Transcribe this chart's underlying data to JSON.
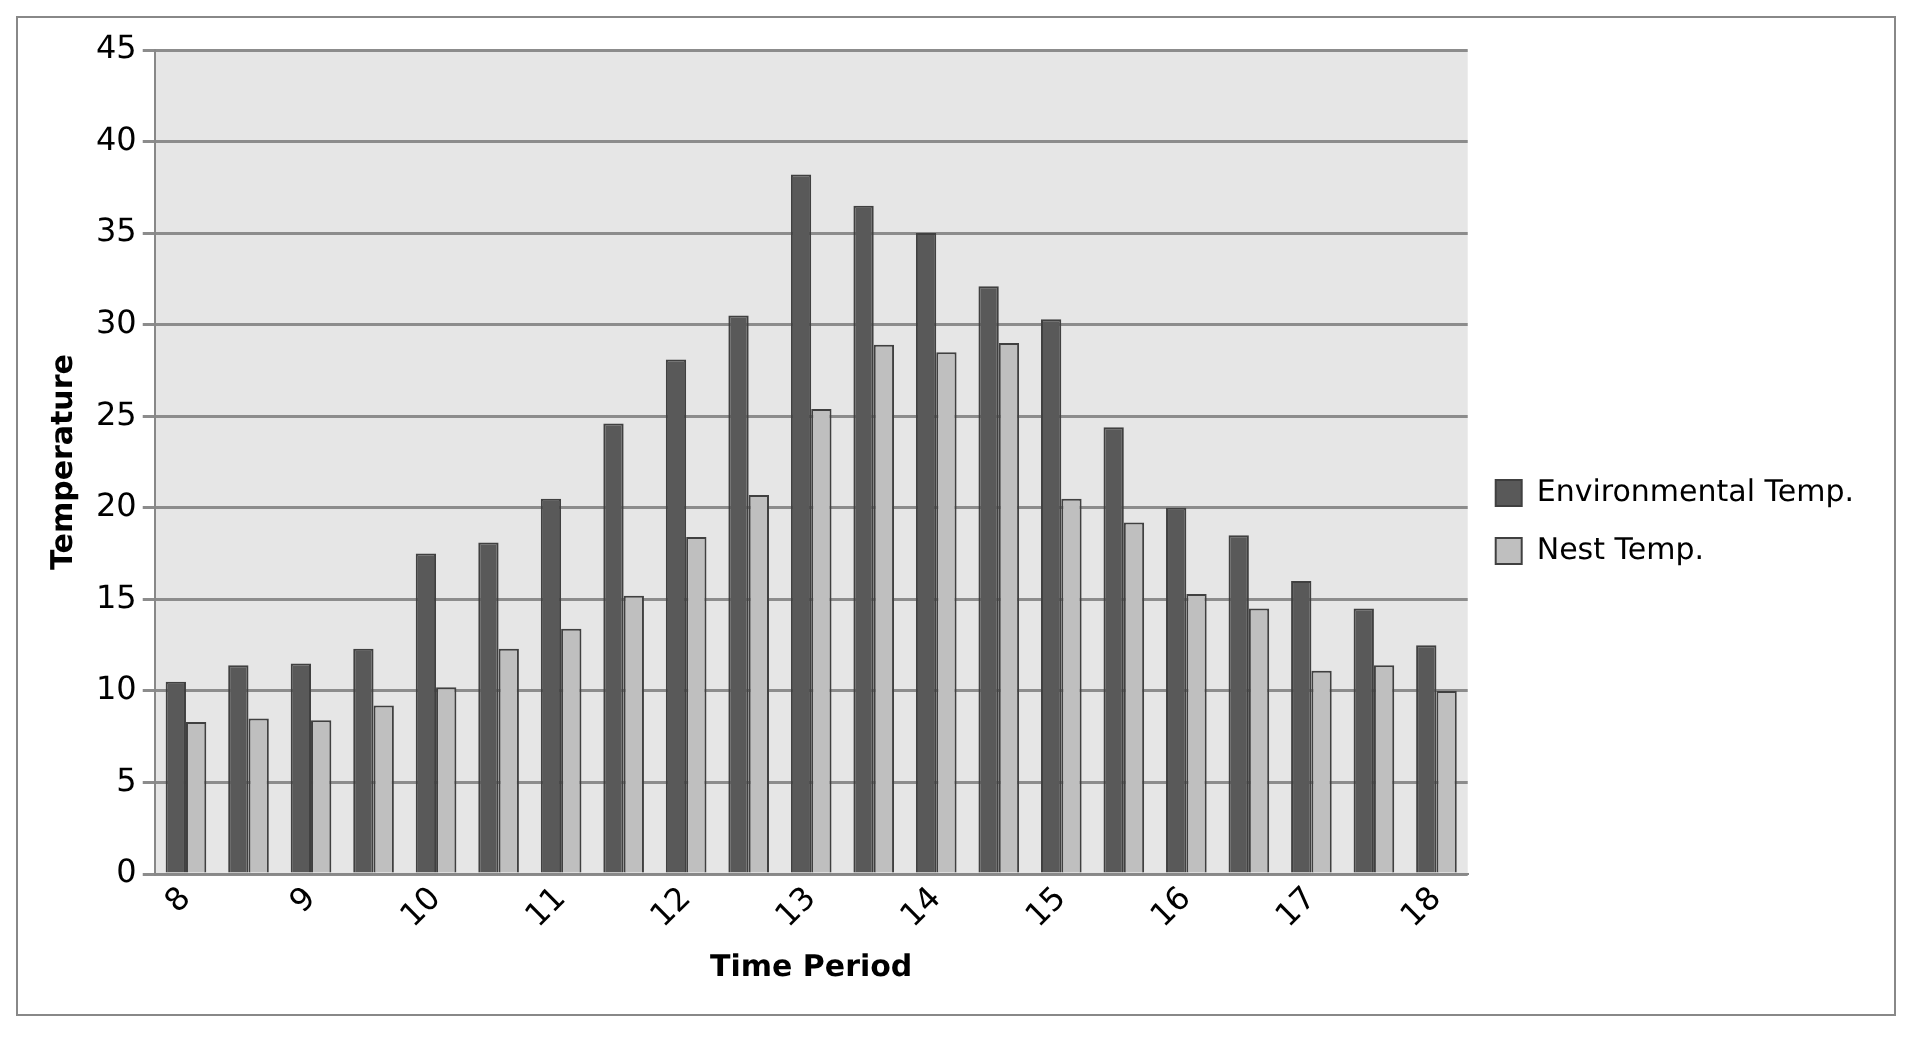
{
  "chart_data": {
    "type": "bar",
    "xlabel": "Time Period",
    "ylabel": "Temperature",
    "categories": [
      "8",
      null,
      "9",
      null,
      "10",
      null,
      "11",
      null,
      "12",
      null,
      "13",
      null,
      "14",
      null,
      "15",
      null,
      "16",
      null,
      "17",
      null,
      "18"
    ],
    "series": [
      {
        "name": "Environmental Temp.",
        "color": "#595959",
        "values": [
          10.5,
          11.4,
          11.5,
          12.3,
          17.5,
          18.1,
          20.5,
          24.6,
          28.1,
          30.5,
          38.2,
          36.5,
          35,
          32.1,
          30.3,
          24.4,
          20,
          18.5,
          16,
          14.5,
          12.5
        ]
      },
      {
        "name": "Nest Temp.",
        "color": "#bfbfbf",
        "values": [
          8.3,
          8.5,
          8.4,
          9.2,
          10.2,
          12.3,
          13.4,
          15.2,
          18.4,
          20.7,
          25.4,
          28.9,
          28.5,
          29,
          20.5,
          19.2,
          15.3,
          14.5,
          11.1,
          11.4,
          10
        ]
      }
    ],
    "ylim": [
      0,
      45
    ],
    "yticks": [
      0,
      5,
      10,
      15,
      20,
      25,
      30,
      35,
      40,
      45
    ],
    "grid": "y",
    "legend": "right"
  }
}
